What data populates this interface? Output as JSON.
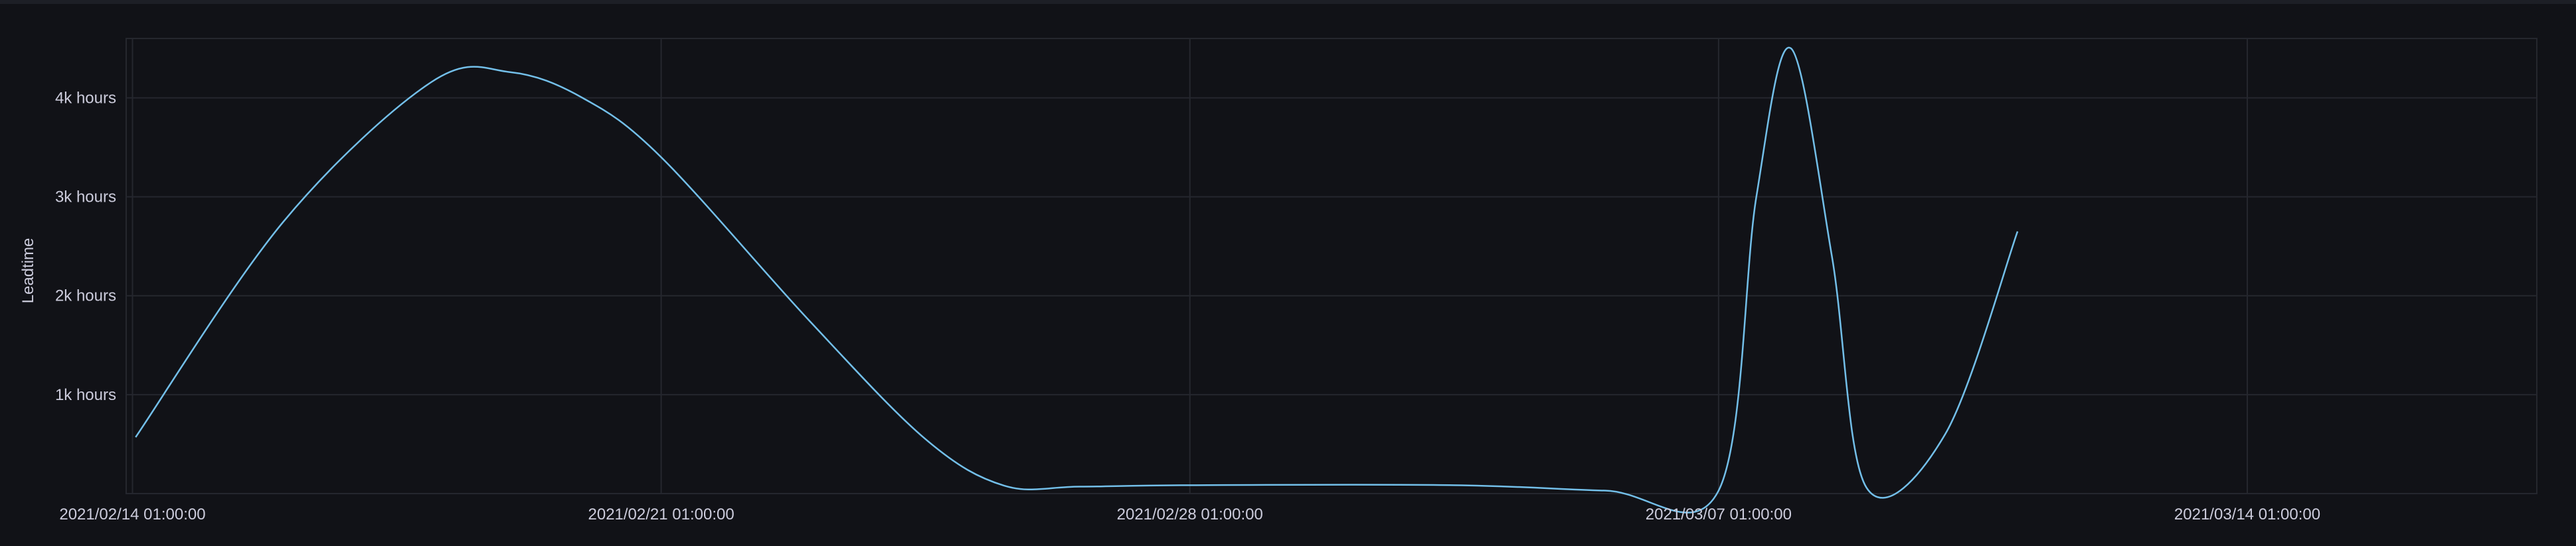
{
  "chart_data": {
    "type": "line",
    "title": "",
    "xlabel": "",
    "ylabel": "Leadtime",
    "x_tick_labels": [
      "2021/02/14 01:00:00",
      "2021/02/21 01:00:00",
      "2021/02/28 01:00:00",
      "2021/03/07 01:00:00",
      "2021/03/14 01:00:00"
    ],
    "y_tick_labels": [
      "1k hours",
      "2k hours",
      "3k hours",
      "4k hours"
    ],
    "y_tick_values": [
      1000,
      2000,
      3000,
      4000
    ],
    "xlim": [
      "2021-02-13T23:00",
      "2021-03-17T21:00"
    ],
    "ylim": [
      0,
      4600
    ],
    "grid": true,
    "legend": "none",
    "series": [
      {
        "color": "#73bfe9",
        "x": [
          "2021-02-14T02:00",
          "2021-02-16T01:00",
          "2021-02-18T00:00",
          "2021-02-19T01:00",
          "2021-02-20T00:00",
          "2021-02-21T01:00",
          "2021-02-23T00:00",
          "2021-02-24T13:00",
          "2021-02-25T14:00",
          "2021-02-26T14:00",
          "2021-02-28T01:00",
          "2021-03-03T13:00",
          "2021-03-05T13:00",
          "2021-03-07T01:00",
          "2021-03-07T13:00",
          "2021-03-08T00:00",
          "2021-03-08T13:00",
          "2021-03-09T00:00",
          "2021-03-10T01:00",
          "2021-03-11T00:00"
        ],
        "y": [
          570,
          2750,
          4160,
          4260,
          4000,
          3400,
          1750,
          550,
          80,
          70,
          85,
          85,
          30,
          30,
          3000,
          4500,
          2400,
          60,
          600,
          2650
        ]
      }
    ]
  }
}
